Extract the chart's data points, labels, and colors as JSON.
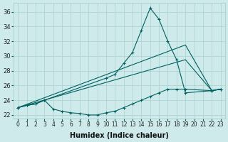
{
  "xlabel": "Humidex (Indice chaleur)",
  "bg_color": "#ceeaea",
  "grid_color": "#b0d4d4",
  "line_color": "#006060",
  "xlim": [
    -0.5,
    23.5
  ],
  "ylim": [
    21.5,
    37.2
  ],
  "xticks": [
    0,
    1,
    2,
    3,
    4,
    5,
    6,
    7,
    8,
    9,
    10,
    11,
    12,
    13,
    14,
    15,
    16,
    17,
    18,
    19,
    20,
    21,
    22,
    23
  ],
  "yticks": [
    22,
    24,
    26,
    28,
    30,
    32,
    34,
    36
  ],
  "lines": [
    {
      "x": [
        0,
        1,
        2,
        3,
        10,
        11,
        12,
        13,
        14,
        15,
        16,
        17,
        18,
        19,
        22,
        23
      ],
      "y": [
        23,
        23.3,
        23.5,
        24,
        27,
        27.5,
        29,
        30.5,
        33.5,
        36.5,
        35,
        32,
        29.5,
        25,
        25.3,
        25.5
      ]
    },
    {
      "x": [
        0,
        19,
        22,
        23
      ],
      "y": [
        23,
        31.5,
        25.3,
        25.5
      ]
    },
    {
      "x": [
        0,
        19,
        22,
        23
      ],
      "y": [
        23,
        29.5,
        25.3,
        25.5
      ]
    },
    {
      "x": [
        0,
        1,
        2,
        3,
        4,
        5,
        6,
        7,
        8,
        9,
        10,
        11,
        12,
        13,
        14,
        15,
        16,
        17,
        18,
        19,
        22,
        23
      ],
      "y": [
        23,
        23.3,
        23.5,
        24,
        22.8,
        22.5,
        22.3,
        22.2,
        22.0,
        22.0,
        22.3,
        22.5,
        23,
        23.5,
        24.0,
        24.5,
        25.0,
        25.5,
        25.5,
        25.5,
        25.3,
        25.5
      ]
    }
  ]
}
